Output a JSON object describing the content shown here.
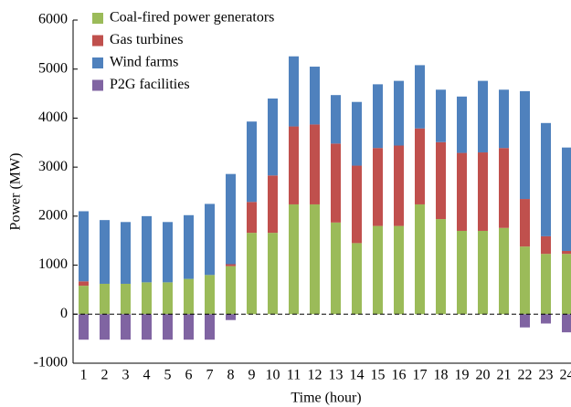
{
  "chart_data": {
    "type": "stacked_bar",
    "xlabel": "Time (hour)",
    "ylabel": "Power (MW)",
    "categories": [
      "1",
      "2",
      "3",
      "4",
      "5",
      "6",
      "7",
      "8",
      "9",
      "10",
      "11",
      "12",
      "13",
      "14",
      "15",
      "16",
      "17",
      "18",
      "19",
      "20",
      "21",
      "22",
      "23",
      "24"
    ],
    "series": [
      {
        "name": "Coal-fired power generators",
        "color": "#9bbb59",
        "values": [
          580,
          620,
          620,
          650,
          650,
          720,
          800,
          980,
          1660,
          1660,
          2240,
          2240,
          1870,
          1450,
          1800,
          1800,
          2240,
          1940,
          1700,
          1700,
          1760,
          1380,
          1230,
          1230
        ]
      },
      {
        "name": "Gas turbines",
        "color": "#c0504d",
        "values": [
          90,
          0,
          0,
          0,
          0,
          0,
          0,
          40,
          630,
          1170,
          1590,
          1630,
          1610,
          1580,
          1590,
          1640,
          1550,
          1570,
          1590,
          1600,
          1630,
          970,
          360,
          60
        ]
      },
      {
        "name": "Wind farms",
        "color": "#4f81bd",
        "values": [
          1430,
          1300,
          1260,
          1350,
          1230,
          1300,
          1450,
          1840,
          1640,
          1570,
          1430,
          1180,
          990,
          1300,
          1300,
          1320,
          1290,
          1070,
          1150,
          1460,
          1190,
          2200,
          2310,
          2110
        ]
      },
      {
        "name": "P2G facilities",
        "color": "#8064a2",
        "values": [
          -520,
          -520,
          -520,
          -520,
          -520,
          -520,
          -520,
          -120,
          0,
          0,
          0,
          0,
          0,
          0,
          0,
          0,
          0,
          0,
          0,
          0,
          0,
          -270,
          -190,
          -370
        ]
      }
    ],
    "ylim": [
      -1000,
      6000
    ],
    "yticks": [
      -1000,
      0,
      1000,
      2000,
      3000,
      4000,
      5000,
      6000
    ],
    "zero_line": "dashed",
    "legend": "upper left"
  }
}
